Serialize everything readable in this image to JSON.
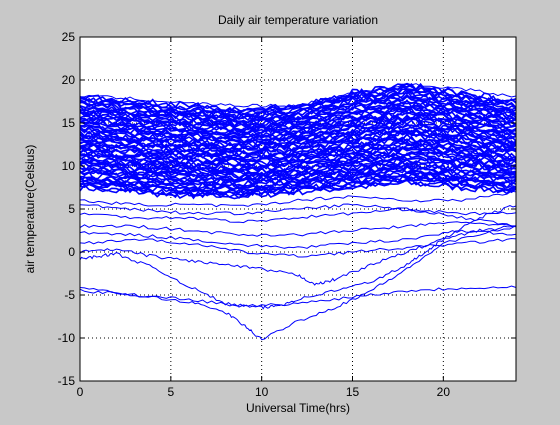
{
  "chart_data": {
    "type": "line",
    "title": "Daily air temperature variation",
    "xlabel": "Universal Time(hrs)",
    "ylabel": "air temperature(Celsius)",
    "xlim": [
      0,
      24
    ],
    "ylim": [
      -15,
      25
    ],
    "x_ticks": [
      0,
      5,
      10,
      15,
      20
    ],
    "y_ticks": [
      -15,
      -10,
      -5,
      0,
      5,
      10,
      15,
      20,
      25
    ],
    "grid": true,
    "line_color": "#0000ff",
    "dense_band": {
      "x": [
        0,
        3,
        6,
        9,
        12,
        15,
        18,
        21,
        24
      ],
      "upper": [
        18,
        17.5,
        17,
        16.5,
        17,
        18.5,
        19.5,
        18.5,
        17.5
      ],
      "lower": [
        7.5,
        7,
        6.5,
        6.5,
        7,
        7.5,
        8,
        7.5,
        7
      ]
    },
    "series": [
      {
        "x": [
          0,
          3,
          6,
          9,
          12,
          15,
          18,
          21,
          24
        ],
        "values": [
          18.2,
          17.8,
          17.3,
          17,
          17,
          18.5,
          19.5,
          19,
          18
        ]
      },
      {
        "x": [
          0,
          3,
          6,
          9,
          12,
          15,
          18,
          21,
          24
        ],
        "values": [
          6,
          5.5,
          5.5,
          5.3,
          6,
          6.5,
          6,
          6,
          7
        ]
      },
      {
        "x": [
          0,
          3,
          6,
          9,
          12,
          15,
          18,
          21,
          24
        ],
        "values": [
          5.5,
          5,
          4.5,
          4.5,
          5,
          5.5,
          5,
          4.5,
          4.5
        ]
      },
      {
        "x": [
          0,
          3,
          6,
          9,
          12,
          15,
          18,
          21,
          24
        ],
        "values": [
          4.5,
          4,
          4,
          3.5,
          4,
          4.5,
          5,
          4,
          3
        ]
      },
      {
        "x": [
          0,
          3,
          6,
          9,
          12,
          15,
          18,
          21,
          24
        ],
        "values": [
          3,
          3,
          2.5,
          2,
          2,
          2.5,
          3,
          3.5,
          3
        ]
      },
      {
        "x": [
          0,
          3,
          6,
          9,
          12,
          15,
          18,
          21,
          24
        ],
        "values": [
          2.2,
          2,
          1.5,
          0.8,
          0.5,
          1,
          1.5,
          2.5,
          2
        ]
      },
      {
        "x": [
          0,
          3,
          6,
          9,
          12,
          15,
          18,
          21,
          24
        ],
        "values": [
          1,
          1.5,
          1,
          0,
          -0.5,
          0,
          0.5,
          1,
          1.5
        ]
      },
      {
        "x": [
          0,
          2,
          4,
          6,
          8,
          10,
          12,
          13,
          14,
          16,
          18,
          20,
          22,
          24
        ],
        "values": [
          0,
          0.3,
          -0.5,
          -1,
          -1.5,
          -2,
          -2.7,
          -3.8,
          -3.2,
          -1.5,
          0,
          1.5,
          2.5,
          3
        ]
      },
      {
        "x": [
          0,
          1,
          2,
          4,
          6,
          8,
          10,
          11,
          12,
          14,
          16,
          18,
          19,
          20,
          22,
          24
        ],
        "values": [
          -0.8,
          -0.5,
          -0.2,
          -1.8,
          -4,
          -6,
          -6.5,
          -6.2,
          -5.5,
          -4.5,
          -3.5,
          -1.5,
          0,
          1.5,
          4,
          5.5
        ]
      },
      {
        "x": [
          0,
          3,
          6,
          8,
          9,
          10,
          12,
          14,
          16,
          18,
          20,
          24
        ],
        "values": [
          -4.2,
          -5,
          -5.8,
          -7,
          -8.5,
          -10.2,
          -8,
          -6.5,
          -4.5,
          -2,
          1,
          3
        ]
      },
      {
        "x": [
          0,
          3,
          6,
          9,
          12,
          15,
          18,
          21,
          24
        ],
        "values": [
          -4.5,
          -5,
          -5.5,
          -6.3,
          -6,
          -5.2,
          -4.5,
          -4.2,
          -4
        ]
      }
    ]
  }
}
